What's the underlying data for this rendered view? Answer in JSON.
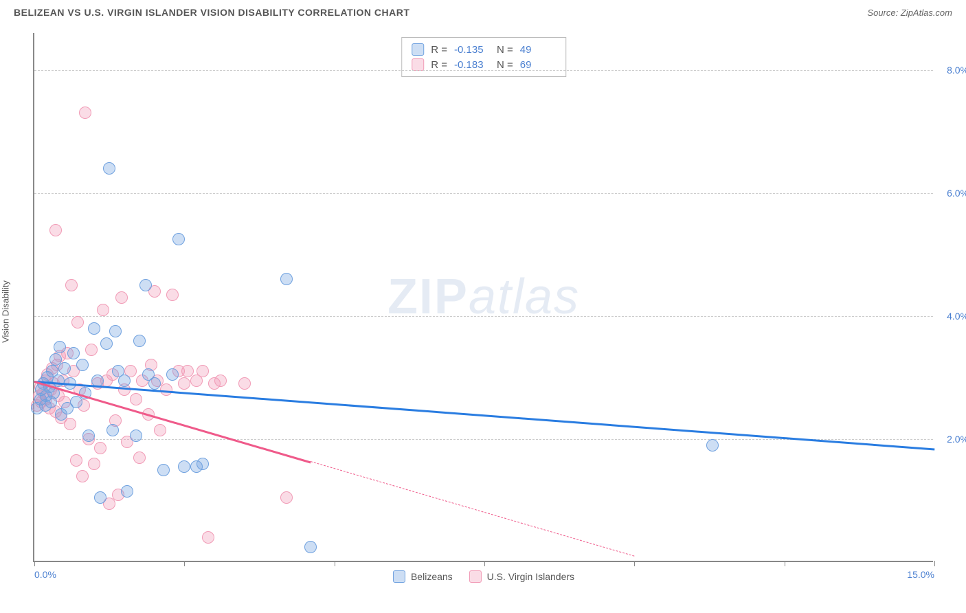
{
  "title": "BELIZEAN VS U.S. VIRGIN ISLANDER VISION DISABILITY CORRELATION CHART",
  "source_label": "Source:",
  "source_name": "ZipAtlas.com",
  "ylabel": "Vision Disability",
  "watermark_zip": "ZIP",
  "watermark_atlas": "atlas",
  "chart": {
    "type": "scatter",
    "xlim": [
      0,
      15
    ],
    "ylim": [
      0,
      8.6
    ],
    "x_ticks": [
      0,
      2.5,
      5,
      7.5,
      10,
      12.5,
      15
    ],
    "x_tick_labels_shown": {
      "0": "0.0%",
      "15": "15.0%"
    },
    "y_gridlines": [
      2,
      4,
      6,
      8
    ],
    "y_tick_labels": {
      "2": "2.0%",
      "4": "4.0%",
      "6": "6.0%",
      "8": "8.0%"
    },
    "background_color": "#ffffff",
    "grid_color": "#cccccc",
    "axis_color": "#888888",
    "tick_label_color": "#4a7fd0",
    "marker_radius": 9,
    "marker_opacity": 0.55,
    "series": {
      "belizeans": {
        "label": "Belizeans",
        "stroke": "#6fa1df",
        "fill": "rgba(111,161,223,0.35)",
        "trend_color": "#2a7de1",
        "trend_width": 2.5,
        "R": "-0.135",
        "N": "49",
        "trend": {
          "x1": 0,
          "y1": 2.95,
          "x2": 15,
          "y2": 1.85,
          "solid_until_x": 15
        },
        "points": [
          [
            0.05,
            2.5
          ],
          [
            0.1,
            2.65
          ],
          [
            0.12,
            2.8
          ],
          [
            0.15,
            2.9
          ],
          [
            0.18,
            2.55
          ],
          [
            0.2,
            2.7
          ],
          [
            0.22,
            3.0
          ],
          [
            0.25,
            2.85
          ],
          [
            0.28,
            2.6
          ],
          [
            0.3,
            3.1
          ],
          [
            0.32,
            2.75
          ],
          [
            0.35,
            3.3
          ],
          [
            0.4,
            2.95
          ],
          [
            0.42,
            3.5
          ],
          [
            0.45,
            2.4
          ],
          [
            0.5,
            3.15
          ],
          [
            0.55,
            2.5
          ],
          [
            0.6,
            2.9
          ],
          [
            0.65,
            3.4
          ],
          [
            0.7,
            2.6
          ],
          [
            0.8,
            3.2
          ],
          [
            0.85,
            2.75
          ],
          [
            0.9,
            2.05
          ],
          [
            1.0,
            3.8
          ],
          [
            1.05,
            2.95
          ],
          [
            1.1,
            1.05
          ],
          [
            1.2,
            3.55
          ],
          [
            1.25,
            6.4
          ],
          [
            1.3,
            2.15
          ],
          [
            1.35,
            3.75
          ],
          [
            1.4,
            3.1
          ],
          [
            1.5,
            2.95
          ],
          [
            1.55,
            1.15
          ],
          [
            1.7,
            2.05
          ],
          [
            1.75,
            3.6
          ],
          [
            1.85,
            4.5
          ],
          [
            1.9,
            3.05
          ],
          [
            2.0,
            2.9
          ],
          [
            2.15,
            1.5
          ],
          [
            2.3,
            3.05
          ],
          [
            2.4,
            5.25
          ],
          [
            2.5,
            1.55
          ],
          [
            2.7,
            1.55
          ],
          [
            2.8,
            1.6
          ],
          [
            4.2,
            4.6
          ],
          [
            4.6,
            0.25
          ],
          [
            11.3,
            1.9
          ]
        ]
      },
      "usvi": {
        "label": "U.S. Virgin Islanders",
        "stroke": "#f19bb6",
        "fill": "rgba(241,155,182,0.35)",
        "trend_color": "#ef5a8a",
        "trend_width": 2.5,
        "R": "-0.183",
        "N": "69",
        "trend": {
          "x1": 0,
          "y1": 2.95,
          "x2": 10,
          "y2": 0.1,
          "solid_until_x": 4.6
        },
        "points": [
          [
            0.05,
            2.55
          ],
          [
            0.08,
            2.7
          ],
          [
            0.1,
            2.85
          ],
          [
            0.12,
            2.6
          ],
          [
            0.15,
            2.75
          ],
          [
            0.18,
            2.95
          ],
          [
            0.2,
            2.65
          ],
          [
            0.22,
            3.05
          ],
          [
            0.25,
            2.5
          ],
          [
            0.28,
            2.8
          ],
          [
            0.3,
            3.15
          ],
          [
            0.32,
            2.9
          ],
          [
            0.35,
            2.45
          ],
          [
            0.38,
            3.2
          ],
          [
            0.4,
            2.7
          ],
          [
            0.42,
            3.35
          ],
          [
            0.45,
            2.35
          ],
          [
            0.48,
            2.95
          ],
          [
            0.5,
            2.6
          ],
          [
            0.55,
            3.4
          ],
          [
            0.6,
            2.25
          ],
          [
            0.62,
            4.5
          ],
          [
            0.65,
            3.1
          ],
          [
            0.7,
            1.65
          ],
          [
            0.72,
            3.9
          ],
          [
            0.75,
            2.8
          ],
          [
            0.8,
            1.4
          ],
          [
            0.82,
            2.55
          ],
          [
            0.85,
            7.3
          ],
          [
            0.9,
            2.0
          ],
          [
            0.95,
            3.45
          ],
          [
            1.0,
            1.6
          ],
          [
            1.05,
            2.9
          ],
          [
            1.1,
            1.85
          ],
          [
            1.15,
            4.1
          ],
          [
            1.2,
            2.95
          ],
          [
            1.25,
            0.95
          ],
          [
            1.3,
            3.05
          ],
          [
            1.35,
            2.3
          ],
          [
            1.4,
            1.1
          ],
          [
            1.45,
            4.3
          ],
          [
            1.5,
            2.8
          ],
          [
            1.55,
            1.95
          ],
          [
            1.6,
            3.1
          ],
          [
            1.7,
            2.65
          ],
          [
            1.75,
            1.7
          ],
          [
            1.8,
            2.95
          ],
          [
            1.9,
            2.4
          ],
          [
            1.95,
            3.2
          ],
          [
            2.0,
            4.4
          ],
          [
            2.05,
            2.95
          ],
          [
            2.1,
            2.15
          ],
          [
            2.2,
            2.8
          ],
          [
            2.3,
            4.35
          ],
          [
            2.4,
            3.1
          ],
          [
            2.5,
            2.9
          ],
          [
            2.55,
            3.1
          ],
          [
            2.7,
            2.95
          ],
          [
            2.8,
            3.1
          ],
          [
            2.9,
            0.4
          ],
          [
            3.0,
            2.9
          ],
          [
            3.1,
            2.95
          ],
          [
            3.5,
            2.9
          ],
          [
            4.2,
            1.05
          ],
          [
            0.35,
            5.4
          ]
        ]
      }
    }
  },
  "stats_box": {
    "r_label": "R =",
    "n_label": "N ="
  }
}
